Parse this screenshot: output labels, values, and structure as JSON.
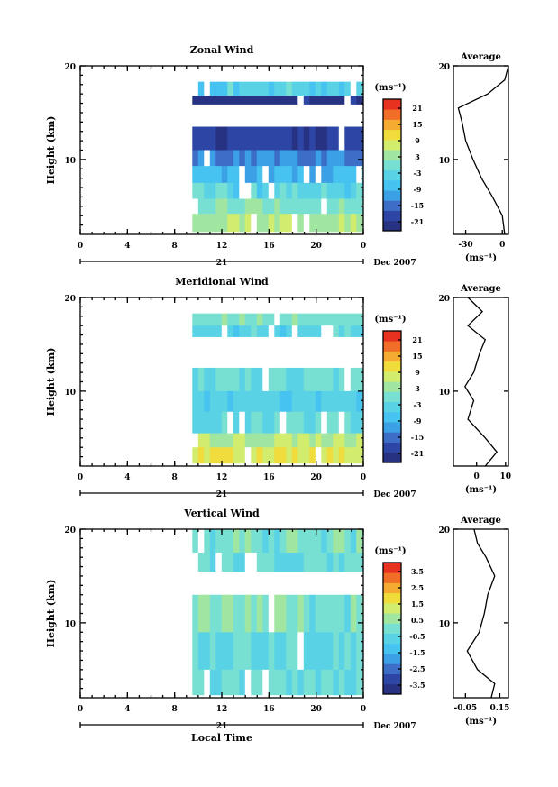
{
  "panels": [
    {
      "title": "Zonal Wind",
      "ylabel": "Height (km)",
      "y_ticks": [
        "10",
        "20"
      ],
      "x_ticks": [
        "0",
        "4",
        "8",
        "12",
        "16",
        "20",
        "0"
      ],
      "date_tick": "21",
      "date_label": "Dec 2007",
      "colorbar": {
        "unit": "(ms⁻¹)",
        "labels": [
          "21",
          "15",
          "9",
          "3",
          "-3",
          "-9",
          "-15",
          "-21"
        ]
      },
      "profile": {
        "title": "Average",
        "x_ticks": [
          "-30",
          "0"
        ],
        "y_ticks": [
          "10",
          "20"
        ],
        "xlabel": "(ms⁻¹)"
      }
    },
    {
      "title": "Meridional Wind",
      "ylabel": "Height (km)",
      "y_ticks": [
        "10",
        "20"
      ],
      "x_ticks": [
        "0",
        "4",
        "8",
        "12",
        "16",
        "20",
        "0"
      ],
      "date_tick": "21",
      "date_label": "Dec 2007",
      "colorbar": {
        "unit": "(ms⁻¹)",
        "labels": [
          "21",
          "15",
          "9",
          "3",
          "-3",
          "-9",
          "-15",
          "-21"
        ]
      },
      "profile": {
        "title": "Average",
        "x_ticks": [
          "0",
          "10"
        ],
        "y_ticks": [
          "10",
          "20"
        ],
        "xlabel": "(ms⁻¹)"
      }
    },
    {
      "title": "Vertical Wind",
      "ylabel": "Height (km)",
      "y_ticks": [
        "10",
        "20"
      ],
      "x_ticks": [
        "0",
        "4",
        "8",
        "12",
        "16",
        "20",
        "0"
      ],
      "date_tick": "21",
      "date_label": "Dec 2007",
      "xlabel": "Local Time",
      "colorbar": {
        "unit": "(ms⁻¹)",
        "labels": [
          "3.5",
          "2.5",
          "1.5",
          "0.5",
          "-0.5",
          "-1.5",
          "-2.5",
          "-3.5"
        ]
      },
      "profile": {
        "title": "Average",
        "x_ticks": [
          "-0.05",
          "0.15"
        ],
        "y_ticks": [
          "10",
          "20"
        ],
        "xlabel": "(ms⁻¹)"
      }
    }
  ],
  "colors": {
    "scale": [
      "#283282",
      "#2d46a5",
      "#3c6ec8",
      "#3ca0e6",
      "#46c3f0",
      "#5ad2e6",
      "#78e0d2",
      "#a0e6a0",
      "#d2ec6e",
      "#f0dc3c",
      "#f5aa32",
      "#f06e28",
      "#e6321e"
    ]
  },
  "chart_data": [
    {
      "type": "heatmap",
      "title": "Zonal Wind",
      "ylabel": "Height (km)",
      "xlabel": "",
      "x_unit": "local time (h)",
      "xlim": [
        0,
        24
      ],
      "ylim": [
        2,
        20
      ],
      "data_start_time": 9.5,
      "value_range": [
        -21,
        21
      ],
      "rows": [
        {
          "y": [
            16.8,
            18.3
          ],
          "v": -4
        },
        {
          "y": [
            15.9,
            16.8
          ],
          "v": -20
        },
        {
          "y": [
            13.5,
            15.9
          ],
          "v": null
        },
        {
          "y": [
            11.0,
            13.5
          ],
          "v": -17
        },
        {
          "y": [
            9.3,
            11.0
          ],
          "v": -12
        },
        {
          "y": [
            7.5,
            9.3
          ],
          "v": -8
        },
        {
          "y": [
            5.8,
            7.5
          ],
          "v": -3
        },
        {
          "y": [
            4.2,
            5.8
          ],
          "v": 1
        },
        {
          "y": [
            2.3,
            4.2
          ],
          "v": 4
        }
      ],
      "profile": {
        "xlim": [
          -40,
          5
        ],
        "heights": [
          2,
          4,
          6,
          8,
          10,
          12,
          14,
          15.5,
          17,
          18.5,
          20
        ],
        "values": [
          2,
          0,
          -8,
          -17,
          -24,
          -30,
          -33,
          -36,
          -12,
          2,
          5
        ]
      }
    },
    {
      "type": "heatmap",
      "title": "Meridional Wind",
      "ylabel": "Height (km)",
      "xlabel": "",
      "x_unit": "local time (h)",
      "xlim": [
        0,
        24
      ],
      "ylim": [
        2,
        20
      ],
      "data_start_time": 9.5,
      "value_range": [
        -21,
        21
      ],
      "rows": [
        {
          "y": [
            17.0,
            18.3
          ],
          "v": 1
        },
        {
          "y": [
            15.8,
            17.0
          ],
          "v": -3
        },
        {
          "y": [
            12.5,
            15.8
          ],
          "v": null
        },
        {
          "y": [
            10.0,
            12.5
          ],
          "v": -1
        },
        {
          "y": [
            7.8,
            10.0
          ],
          "v": -4
        },
        {
          "y": [
            5.5,
            7.8
          ],
          "v": -2
        },
        {
          "y": [
            4.0,
            5.5
          ],
          "v": 5
        },
        {
          "y": [
            2.3,
            4.0
          ],
          "v": 8
        }
      ],
      "profile": {
        "xlim": [
          -8,
          11
        ],
        "heights": [
          2,
          3.5,
          5,
          7,
          9,
          10.5,
          12,
          14,
          15.5,
          17,
          18.5,
          20
        ],
        "values": [
          3,
          7,
          3,
          -3,
          -1,
          -4,
          -1,
          1,
          3,
          -3,
          2,
          -3
        ]
      }
    },
    {
      "type": "heatmap",
      "title": "Vertical Wind",
      "ylabel": "Height (km)",
      "xlabel": "Local Time",
      "x_unit": "local time (h)",
      "xlim": [
        0,
        24
      ],
      "ylim": [
        2,
        20
      ],
      "data_start_time": 9.5,
      "value_range": [
        -3.5,
        3.5
      ],
      "rows": [
        {
          "y": [
            17.5,
            20.0
          ],
          "v": 0.0
        },
        {
          "y": [
            15.5,
            17.5
          ],
          "v": -0.2
        },
        {
          "y": [
            13.0,
            15.5
          ],
          "v": null
        },
        {
          "y": [
            9.0,
            13.0
          ],
          "v": 0.1
        },
        {
          "y": [
            5.0,
            9.0
          ],
          "v": -0.3
        },
        {
          "y": [
            2.3,
            5.0
          ],
          "v": -0.2
        }
      ],
      "profile": {
        "xlim": [
          -0.12,
          0.2
        ],
        "heights": [
          2,
          3.5,
          5,
          7,
          9,
          11,
          13,
          15,
          17,
          18.5,
          20
        ],
        "values": [
          0.1,
          0.12,
          0.02,
          -0.04,
          0.03,
          0.06,
          0.08,
          0.12,
          0.07,
          0.02,
          0.0
        ]
      }
    }
  ]
}
